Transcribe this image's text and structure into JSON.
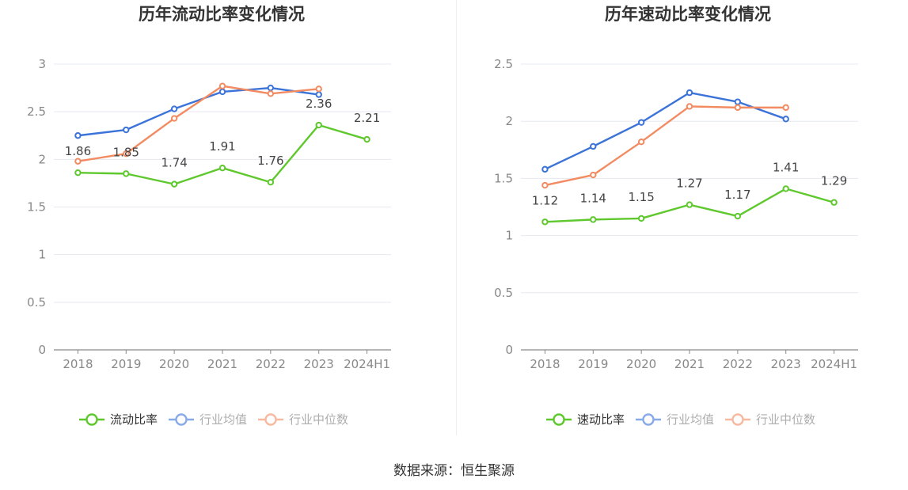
{
  "source_label": "数据来源：恒生聚源",
  "colors": {
    "company": "#5ec82d",
    "avg": "#3b73d9",
    "median": "#f28b61",
    "grid": "#e6e8f0",
    "axis": "#8a8a8a",
    "tick_text": "#888888",
    "title_text": "#333333",
    "label_text": "#444444"
  },
  "chart_data": [
    {
      "type": "line",
      "title": "历年流动比率变化情况",
      "categories": [
        "2018",
        "2019",
        "2020",
        "2021",
        "2022",
        "2023",
        "2024H1"
      ],
      "ylim": [
        0,
        3
      ],
      "yticks": [
        0,
        0.5,
        1,
        1.5,
        2,
        2.5,
        3
      ],
      "ytick_labels": [
        "0",
        "0.5",
        "1",
        "1.5",
        "2",
        "2.5",
        "3"
      ],
      "legend_position": "bottom",
      "series": [
        {
          "name": "流动比率",
          "key": "company",
          "values": [
            1.86,
            1.85,
            1.74,
            1.91,
            1.76,
            2.36,
            2.21
          ],
          "labels": [
            "1.86",
            "1.85",
            "1.74",
            "1.91",
            "1.76",
            "2.36",
            "2.21"
          ]
        },
        {
          "name": "行业均值",
          "key": "avg",
          "values": [
            2.25,
            2.31,
            2.53,
            2.71,
            2.75,
            2.68,
            null
          ]
        },
        {
          "name": "行业中位数",
          "key": "median",
          "values": [
            1.98,
            2.06,
            2.43,
            2.77,
            2.69,
            2.74,
            null
          ]
        }
      ]
    },
    {
      "type": "line",
      "title": "历年速动比率变化情况",
      "categories": [
        "2018",
        "2019",
        "2020",
        "2021",
        "2022",
        "2023",
        "2024H1"
      ],
      "ylim": [
        0,
        2.5
      ],
      "yticks": [
        0,
        0.5,
        1,
        1.5,
        2,
        2.5
      ],
      "ytick_labels": [
        "0",
        "0.5",
        "1",
        "1.5",
        "2",
        "2.5"
      ],
      "legend_position": "bottom",
      "series": [
        {
          "name": "速动比率",
          "key": "company",
          "values": [
            1.12,
            1.14,
            1.15,
            1.27,
            1.17,
            1.41,
            1.29
          ],
          "labels": [
            "1.12",
            "1.14",
            "1.15",
            "1.27",
            "1.17",
            "1.41",
            "1.29"
          ]
        },
        {
          "name": "行业均值",
          "key": "avg",
          "values": [
            1.58,
            1.78,
            1.99,
            2.25,
            2.17,
            2.02,
            null
          ]
        },
        {
          "name": "行业中位数",
          "key": "median",
          "values": [
            1.44,
            1.53,
            1.82,
            2.13,
            2.12,
            2.12,
            null
          ]
        }
      ]
    }
  ]
}
